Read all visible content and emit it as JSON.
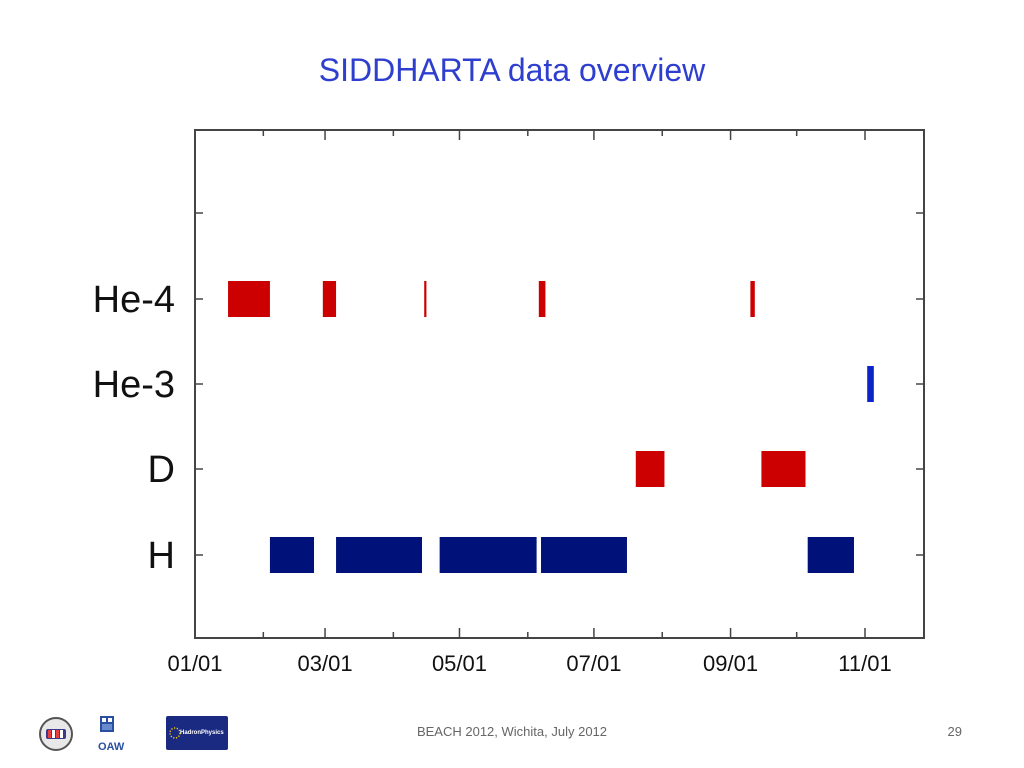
{
  "slide": {
    "title": "SIDDHARTA data overview",
    "footer": "BEACH 2012, Wichita, July 2012",
    "page_number": "29"
  },
  "logos": {
    "oaw_text": "OAW",
    "hadron_text": "HadronPhysics"
  },
  "colors": {
    "title": "#2e3ecf",
    "red": "#cc0000",
    "blue": "#00127a",
    "bright_blue": "#0a24c8"
  },
  "chart_data": {
    "type": "timeline",
    "categories": [
      "H",
      "D",
      "He-3",
      "He-4"
    ],
    "xlim": [
      "2009-12-20",
      "2009-11-19"
    ],
    "x_ticks": [
      {
        "date": "2009-01-01",
        "label": "01/01"
      },
      {
        "date": "2009-03-01",
        "label": "03/01"
      },
      {
        "date": "2009-05-01",
        "label": "05/01"
      },
      {
        "date": "2009-07-01",
        "label": "07/01"
      },
      {
        "date": "2009-09-01",
        "label": "09/01"
      },
      {
        "date": "2009-11-01",
        "label": "11/01"
      }
    ],
    "xlim_dates": [
      "2009-01-01",
      "2009-11-20"
    ],
    "intervals": [
      {
        "category": "He-4",
        "start": "2009-01-16",
        "end": "2009-02-04",
        "color": "red"
      },
      {
        "category": "He-4",
        "start": "2009-02-28",
        "end": "2009-03-06",
        "color": "red"
      },
      {
        "category": "He-4",
        "start": "2009-04-15",
        "end": "2009-04-16",
        "color": "red"
      },
      {
        "category": "He-4",
        "start": "2009-06-06",
        "end": "2009-06-09",
        "color": "red"
      },
      {
        "category": "He-4",
        "start": "2009-09-10",
        "end": "2009-09-12",
        "color": "red"
      },
      {
        "category": "He-3",
        "start": "2009-11-02",
        "end": "2009-11-05",
        "color": "bright_blue"
      },
      {
        "category": "D",
        "start": "2009-07-20",
        "end": "2009-08-02",
        "color": "red"
      },
      {
        "category": "D",
        "start": "2009-09-15",
        "end": "2009-10-05",
        "color": "red"
      },
      {
        "category": "H",
        "start": "2009-02-04",
        "end": "2009-02-24",
        "color": "blue"
      },
      {
        "category": "H",
        "start": "2009-03-06",
        "end": "2009-04-14",
        "color": "blue"
      },
      {
        "category": "H",
        "start": "2009-04-22",
        "end": "2009-06-05",
        "color": "blue"
      },
      {
        "category": "H",
        "start": "2009-06-07",
        "end": "2009-07-16",
        "color": "blue"
      },
      {
        "category": "H",
        "start": "2009-10-06",
        "end": "2009-10-27",
        "color": "blue"
      }
    ]
  }
}
